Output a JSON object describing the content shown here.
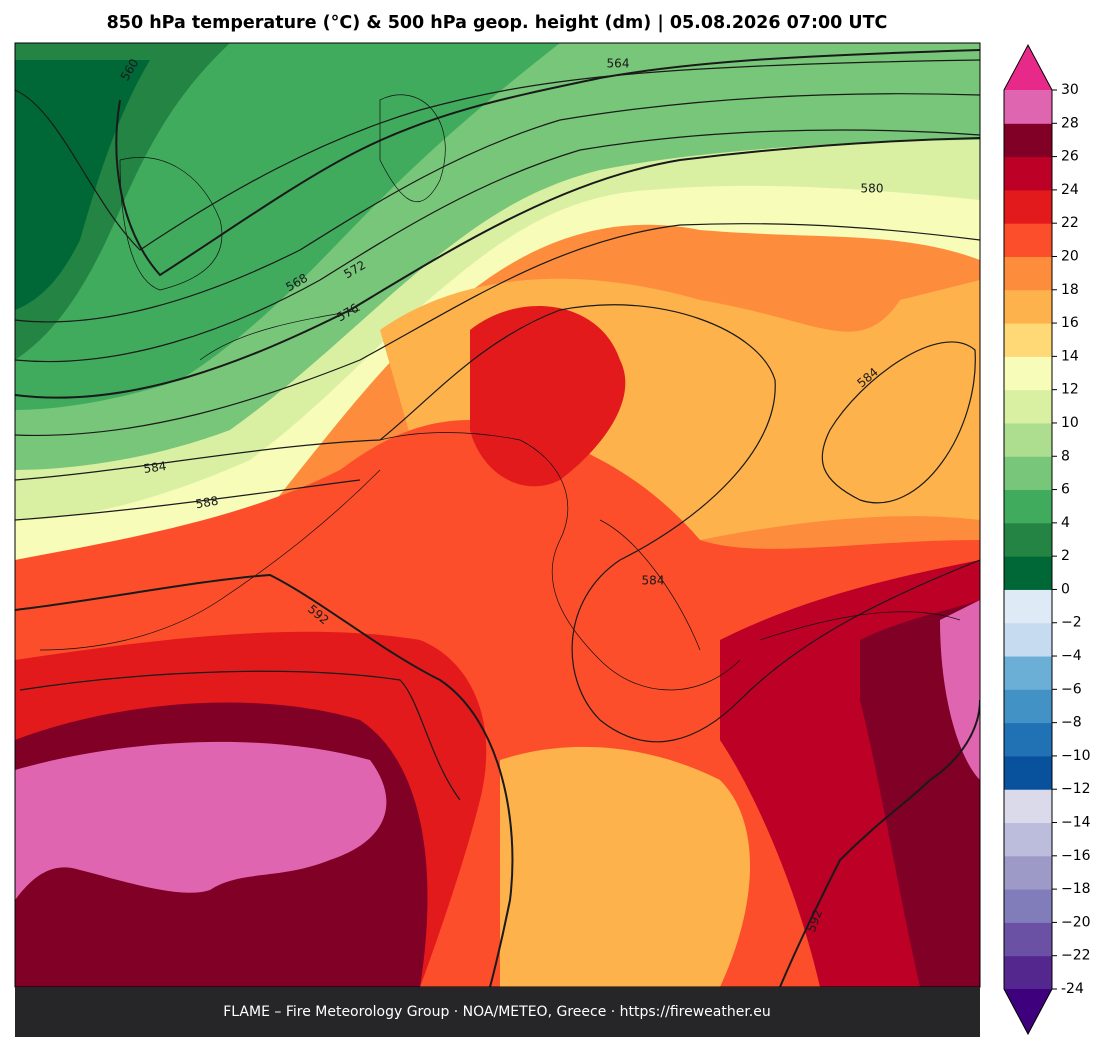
{
  "title": "850 hPa temperature (°C) & 500 hPa geop. height (dm)  |  05.08.2026 07:00 UTC",
  "footer": "FLAME – Fire Meteorology Group · NOA/METEO, Greece · https://fireweather.eu",
  "contour_labels": [
    560,
    564,
    568,
    572,
    576,
    580,
    584,
    588,
    584,
    584,
    592,
    592
  ],
  "colorbar": {
    "ticks": [
      -24,
      {
        "value": -22,
        "label": "−22"
      },
      {
        "value": -20,
        "label": "−20"
      },
      {
        "value": -18,
        "label": "−18"
      },
      {
        "value": -16,
        "label": "−16"
      },
      {
        "value": -14,
        "label": "−14"
      },
      {
        "value": -12,
        "label": "−12"
      },
      {
        "value": -10,
        "label": "−10"
      },
      {
        "value": -8,
        "label": "−8"
      },
      {
        "value": -6,
        "label": "−6"
      },
      {
        "value": -4,
        "label": "−4"
      },
      {
        "value": -2,
        "label": "−2"
      },
      0,
      2,
      4,
      6,
      8,
      10,
      12,
      14,
      16,
      18,
      20,
      22,
      24,
      26,
      28,
      30
    ],
    "colors": [
      "#54278f",
      "#6a51a3",
      "#807dba",
      "#9e9ac8",
      "#bcbddc",
      "#dadaeb",
      "#08519c",
      "#2171b5",
      "#4292c6",
      "#6baed6",
      "#c6dbef",
      "#deebf7",
      "#006837",
      "#238443",
      "#41ab5d",
      "#78c679",
      "#addd8e",
      "#d9f0a3",
      "#f7fcb9",
      "#fed976",
      "#feb24c",
      "#fd8d3c",
      "#fc4e2a",
      "#e31a1c",
      "#bd0026",
      "#800026",
      "#df65b0"
    ],
    "extend_low": "#3f007d",
    "extend_high": "#e7298a"
  }
}
